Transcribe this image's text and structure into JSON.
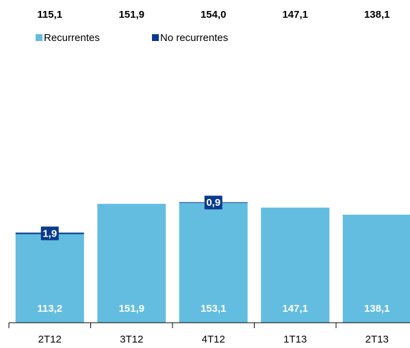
{
  "chart_data": {
    "type": "stacked-bar",
    "categories": [
      "2T12",
      "3T12",
      "4T12",
      "1T13",
      "2T13"
    ],
    "series": [
      {
        "name": "Recurrentes",
        "color": "#63bde0",
        "values": [
          113.2,
          151.9,
          153.1,
          147.1,
          138.1
        ],
        "value_labels": [
          "113,2",
          "151,9",
          "153,1",
          "147,1",
          "138,1"
        ]
      },
      {
        "name": "No recurrentes",
        "color": "#0a3a8c",
        "values": [
          1.9,
          null,
          0.9,
          null,
          null
        ],
        "value_labels": [
          "1,9",
          null,
          "0,9",
          null,
          null
        ]
      }
    ],
    "totals": {
      "values": [
        115.1,
        151.9,
        154.0,
        147.1,
        138.1
      ],
      "value_labels": [
        "115,1",
        "151,9",
        "154,0",
        "147,1",
        "138,1"
      ]
    },
    "ylim": [
      0,
      180
    ]
  }
}
